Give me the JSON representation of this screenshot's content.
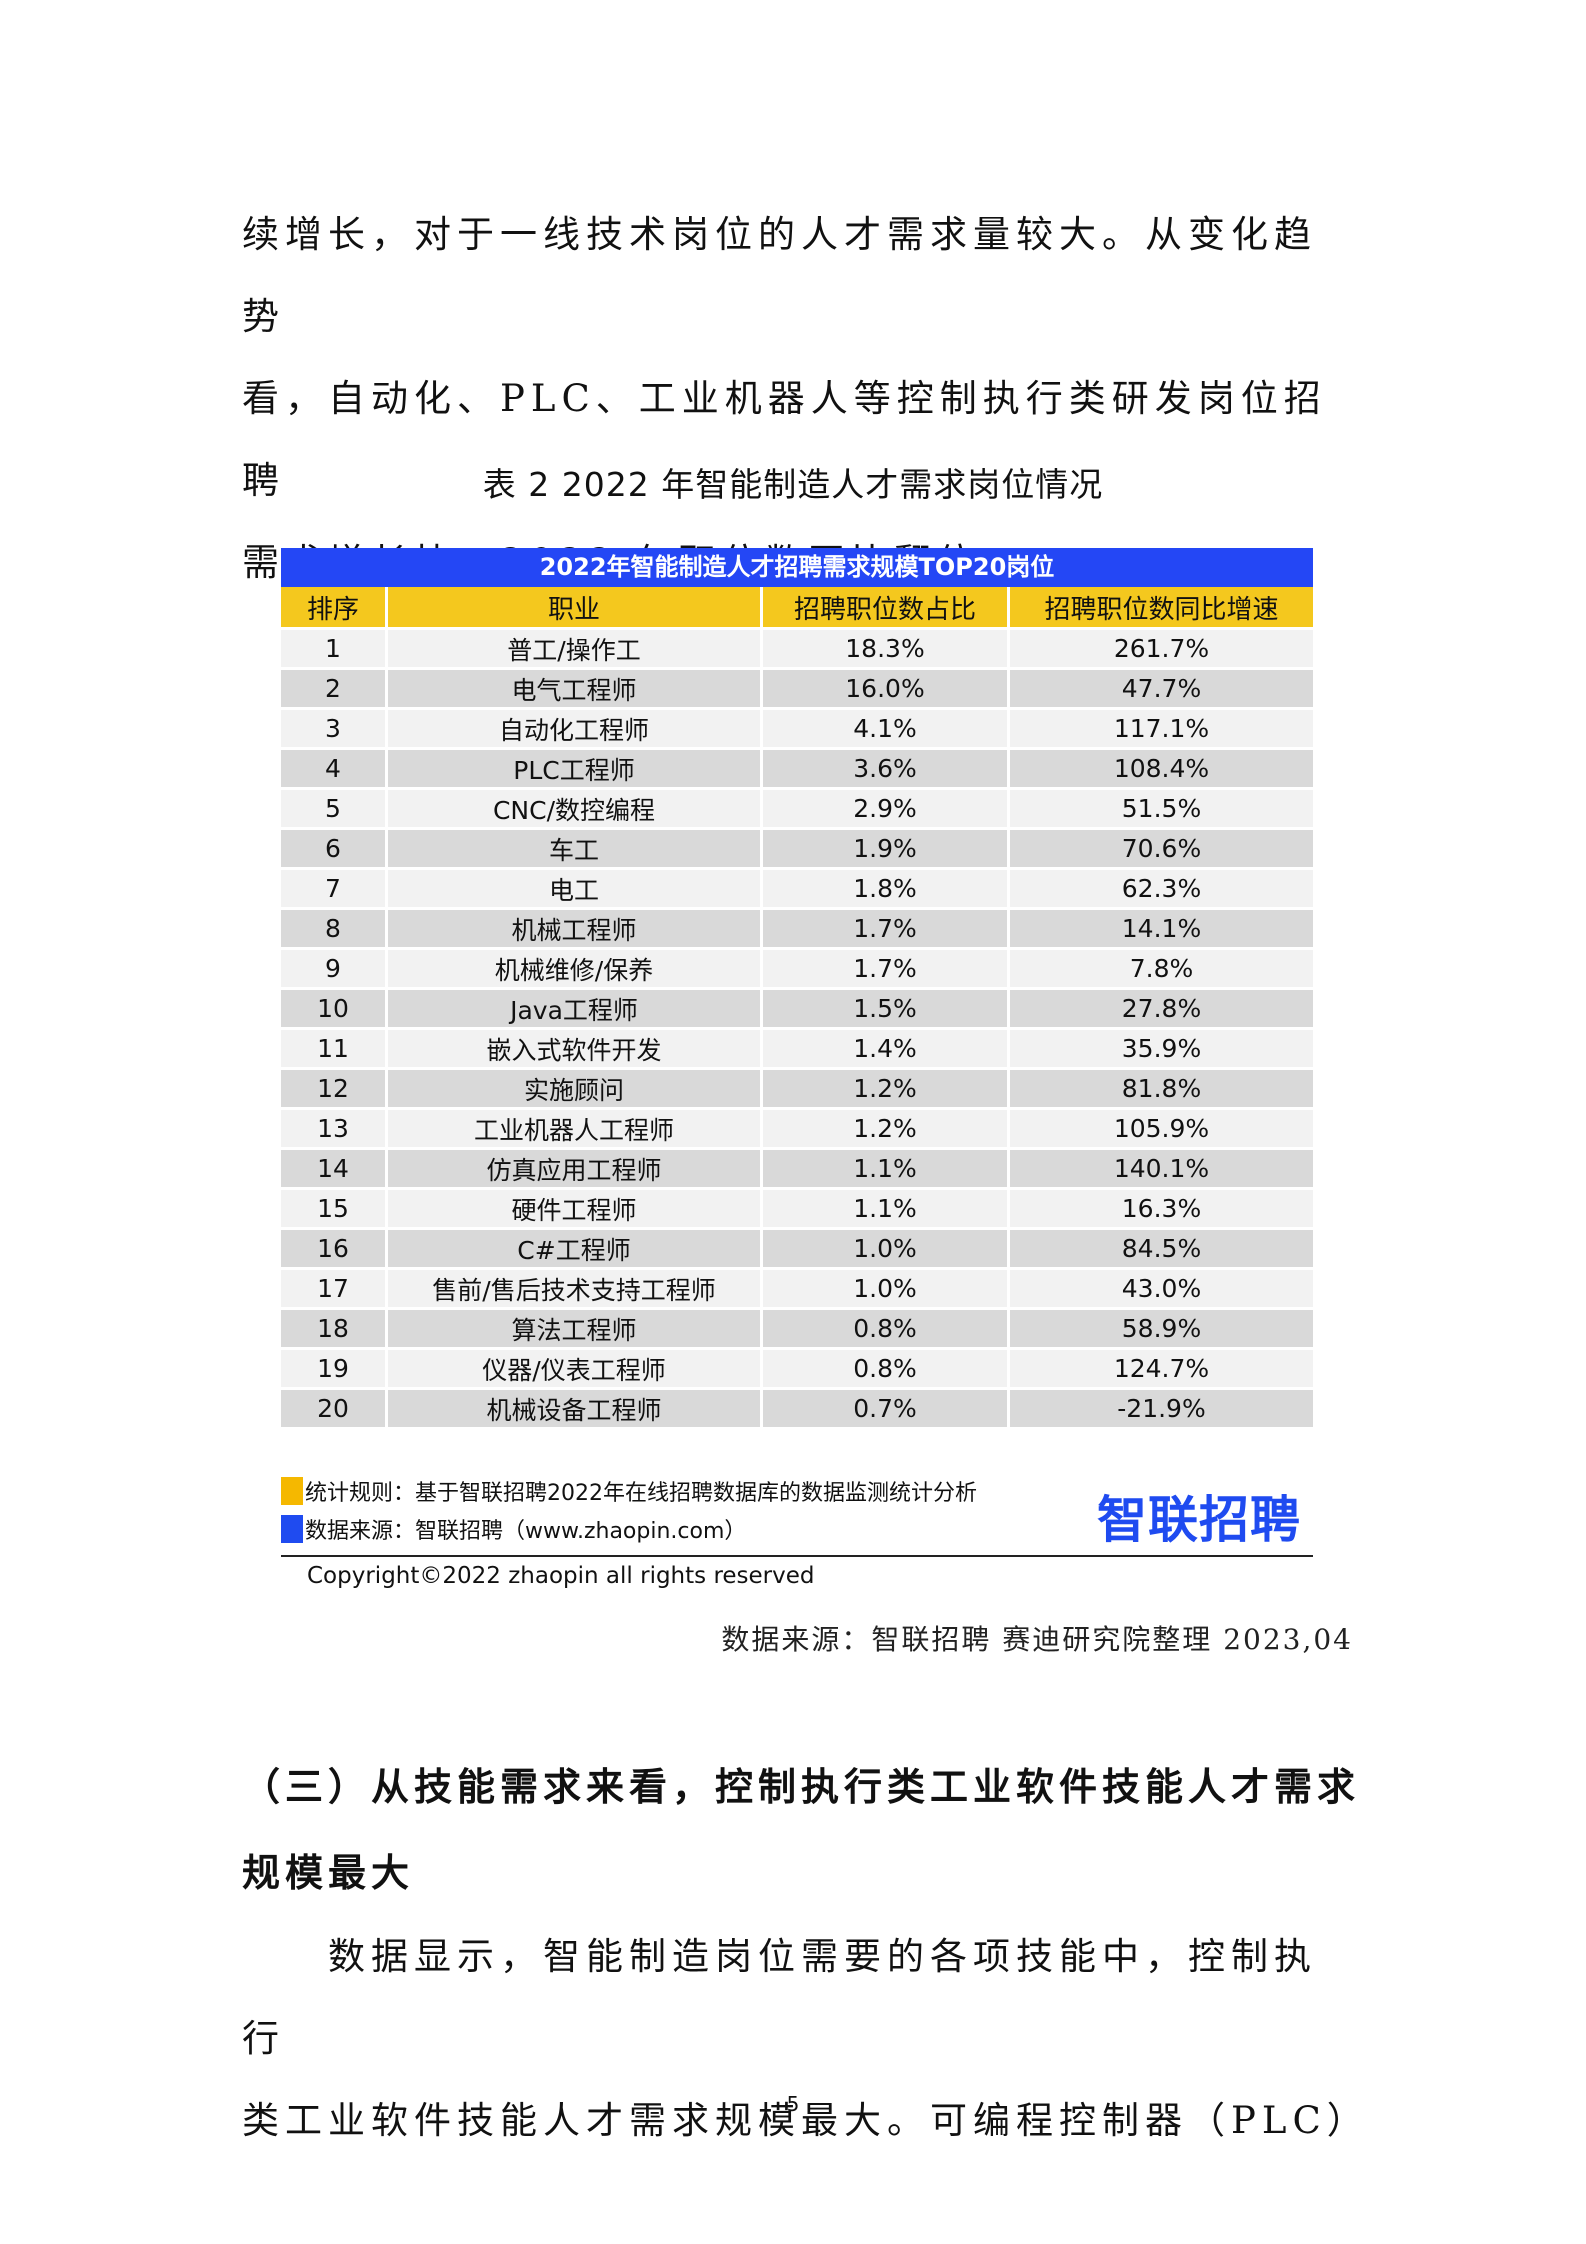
{
  "intro_paragraph": {
    "lines": [
      "续增长，对于一线技术岗位的人才需求量较大。从变化趋势",
      "看，自动化、PLC、工业机器人等控制执行类研发岗位招聘",
      "需求增长快，2022 年职位数同比翻倍。"
    ]
  },
  "table_caption": "表 2 2022 年智能制造人才需求岗位情况",
  "table": {
    "title": "2022年智能制造人才招聘需求规模TOP20岗位",
    "headers": [
      "排序",
      "职业",
      "招聘职位数占比",
      "招聘职位数同比增速"
    ],
    "rows": [
      {
        "rank": "1",
        "job": "普工/操作工",
        "share": "18.3%",
        "growth": "261.7%"
      },
      {
        "rank": "2",
        "job": "电气工程师",
        "share": "16.0%",
        "growth": "47.7%"
      },
      {
        "rank": "3",
        "job": "自动化工程师",
        "share": "4.1%",
        "growth": "117.1%"
      },
      {
        "rank": "4",
        "job": "PLC工程师",
        "share": "3.6%",
        "growth": "108.4%"
      },
      {
        "rank": "5",
        "job": "CNC/数控编程",
        "share": "2.9%",
        "growth": "51.5%"
      },
      {
        "rank": "6",
        "job": "车工",
        "share": "1.9%",
        "growth": "70.6%"
      },
      {
        "rank": "7",
        "job": "电工",
        "share": "1.8%",
        "growth": "62.3%"
      },
      {
        "rank": "8",
        "job": "机械工程师",
        "share": "1.7%",
        "growth": "14.1%"
      },
      {
        "rank": "9",
        "job": "机械维修/保养",
        "share": "1.7%",
        "growth": "7.8%"
      },
      {
        "rank": "10",
        "job": "Java工程师",
        "share": "1.5%",
        "growth": "27.8%"
      },
      {
        "rank": "11",
        "job": "嵌入式软件开发",
        "share": "1.4%",
        "growth": "35.9%"
      },
      {
        "rank": "12",
        "job": "实施顾问",
        "share": "1.2%",
        "growth": "81.8%"
      },
      {
        "rank": "13",
        "job": "工业机器人工程师",
        "share": "1.2%",
        "growth": "105.9%"
      },
      {
        "rank": "14",
        "job": "仿真应用工程师",
        "share": "1.1%",
        "growth": "140.1%"
      },
      {
        "rank": "15",
        "job": "硬件工程师",
        "share": "1.1%",
        "growth": "16.3%"
      },
      {
        "rank": "16",
        "job": "C#工程师",
        "share": "1.0%",
        "growth": "84.5%"
      },
      {
        "rank": "17",
        "job": "售前/售后技术支持工程师",
        "share": "1.0%",
        "growth": "43.0%"
      },
      {
        "rank": "18",
        "job": "算法工程师",
        "share": "0.8%",
        "growth": "58.9%"
      },
      {
        "rank": "19",
        "job": "仪器/仪表工程师",
        "share": "0.8%",
        "growth": "124.7%"
      },
      {
        "rank": "20",
        "job": "机械设备工程师",
        "share": "0.7%",
        "growth": "-21.9%"
      }
    ],
    "colors": {
      "title_bg": "#2447F5",
      "header_bg": "#F4C81E",
      "row_light": "#F2F2F2",
      "row_dark": "#D9D9D9"
    }
  },
  "table_notes": {
    "rule_note": "统计规则：基于智联招聘2022年在线招聘数据库的数据监测统计分析",
    "source_note": "数据来源：智联招聘（www.zhaopin.com）",
    "logo_text_a": "智",
    "logo_text_b": "联招聘",
    "copyright": "Copyright©2022 zhaopin all rights reserved",
    "swatch_colors": [
      "#F5B800",
      "#1F4BF0"
    ]
  },
  "source_attribution": "数据来源：智联招聘 赛迪研究院整理 2023,04",
  "section_heading": {
    "lines": [
      "（三）从技能需求来看，控制执行类工业软件技能人才需求",
      "规模最大"
    ]
  },
  "body_paragraph": {
    "lines": [
      "　　数据显示，智能制造岗位需要的各项技能中，控制执行",
      "类工业软件技能人才需求规模最大。可编程控制器（PLC）"
    ]
  },
  "page_number": "5"
}
